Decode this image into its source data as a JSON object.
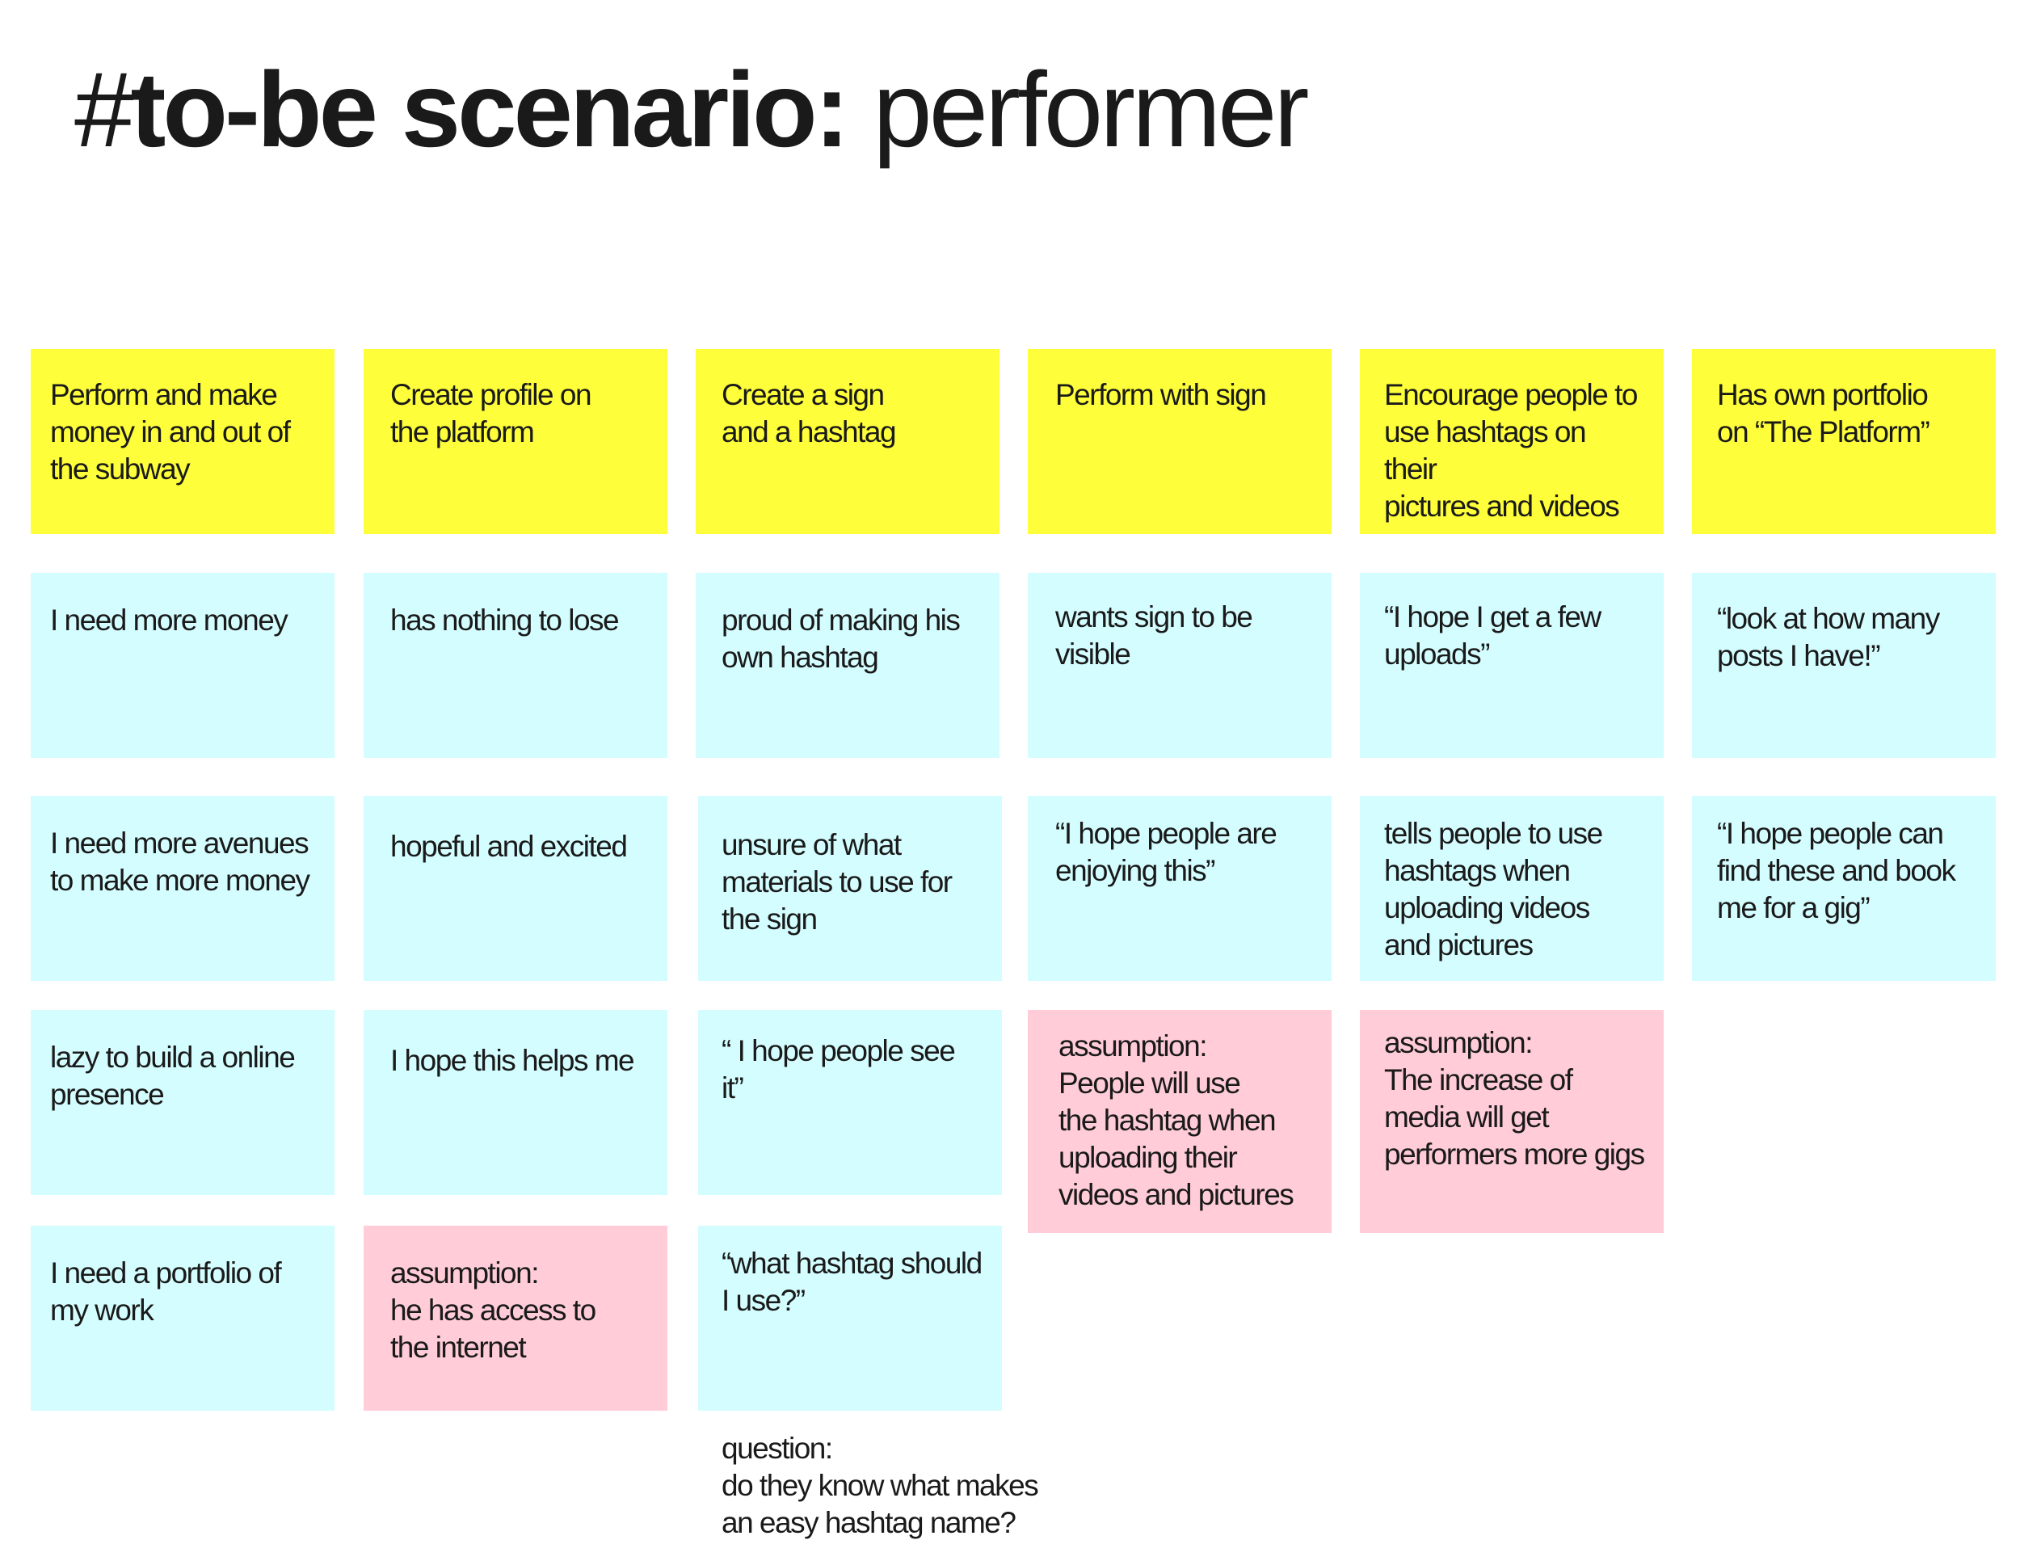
{
  "title": {
    "prefix": "#",
    "strong": "to-be scenario:",
    "light": " performer"
  },
  "colors": {
    "header": "#fefe3a",
    "thought": "#d4fdff",
    "assumption": "#ffccd8"
  },
  "columns": [
    {
      "header": "Perform and make\nmoney in and out of\nthe subway",
      "cards": [
        {
          "type": "thought",
          "text": "I need more money"
        },
        {
          "type": "thought",
          "text": "I need more avenues\nto make more money"
        },
        {
          "type": "thought",
          "text": "lazy to build a online\npresence"
        },
        {
          "type": "thought",
          "text": "I need a portfolio of\nmy work"
        }
      ]
    },
    {
      "header": "Create profile on\nthe platform",
      "cards": [
        {
          "type": "thought",
          "text": "has nothing to lose"
        },
        {
          "type": "thought",
          "text": "hopeful and excited"
        },
        {
          "type": "thought",
          "text": "I hope this helps me"
        },
        {
          "type": "assumption",
          "text": "assumption:\nhe has access to\nthe internet"
        }
      ]
    },
    {
      "header": "Create a sign\nand a hashtag",
      "cards": [
        {
          "type": "thought",
          "text": "proud of making his\nown hashtag"
        },
        {
          "type": "thought",
          "text": "unsure of what\nmaterials to use for\nthe sign"
        },
        {
          "type": "thought",
          "text": "“ I hope people see it”"
        },
        {
          "type": "thought",
          "text": "“what hashtag should\nI use?”"
        }
      ],
      "question": "question:\ndo they know what makes\nan easy hashtag name?"
    },
    {
      "header": "Perform with sign",
      "cards": [
        {
          "type": "thought",
          "text": "wants sign to be\nvisible"
        },
        {
          "type": "thought",
          "text": "“I hope people are\nenjoying this”"
        },
        {
          "type": "assumption",
          "text": "assumption:\nPeople will use\nthe hashtag when\nuploading their\nvideos and pictures"
        }
      ]
    },
    {
      "header": "Encourage people to\nuse hashtags on their\npictures and videos",
      "cards": [
        {
          "type": "thought",
          "text": "“I hope I get a few\nuploads”"
        },
        {
          "type": "thought",
          "text": "tells people to use\nhashtags when\nuploading videos\nand pictures"
        },
        {
          "type": "assumption",
          "text": "assumption:\nThe increase of\nmedia will get\nperformers more gigs"
        }
      ]
    },
    {
      "header": "Has own portfolio\non “The Platform”",
      "cards": [
        {
          "type": "thought",
          "text": "“look at how many\nposts I have!”"
        },
        {
          "type": "thought",
          "text": "“I hope people can\nfind these and book\nme for a gig”"
        }
      ]
    }
  ]
}
